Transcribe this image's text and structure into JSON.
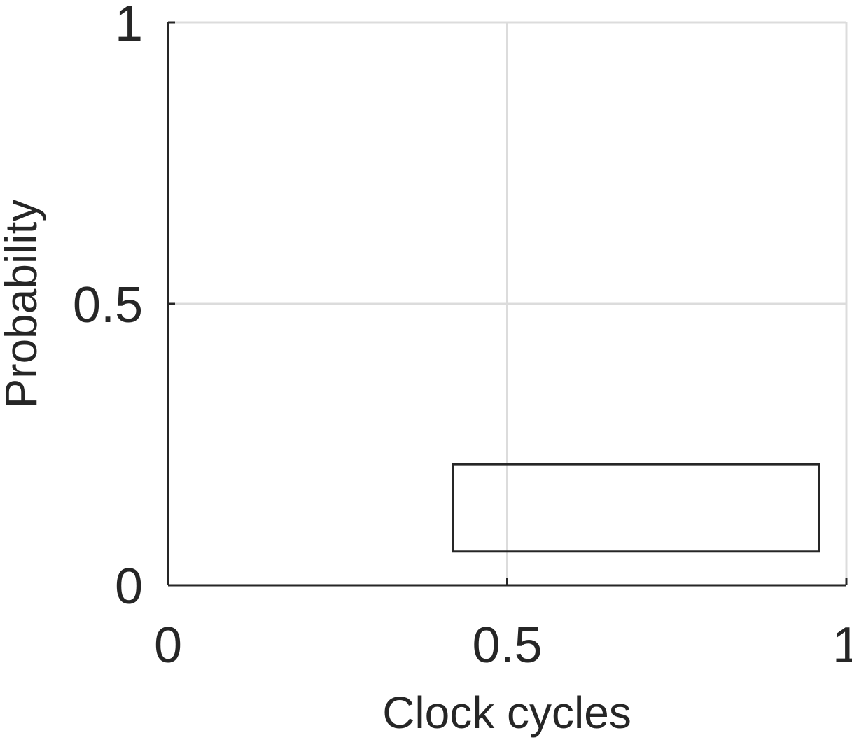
{
  "chart_data": {
    "type": "bar",
    "xlabel": "Clock cycles",
    "ylabel": "Probability",
    "xlim": [
      0,
      1
    ],
    "ylim": [
      0,
      1
    ],
    "xticks": [
      "0",
      "0.5",
      "1"
    ],
    "yticks": [
      "0",
      "0.5",
      "1"
    ],
    "grid": true,
    "bars": [
      {
        "x0": 0.42,
        "x1": 0.96,
        "y0": 0.06,
        "y1": 0.215
      }
    ],
    "colors": {
      "axis": "#262626",
      "grid": "#dcdcdc",
      "bar_edge": "#262626",
      "bar_fill": "none"
    }
  }
}
